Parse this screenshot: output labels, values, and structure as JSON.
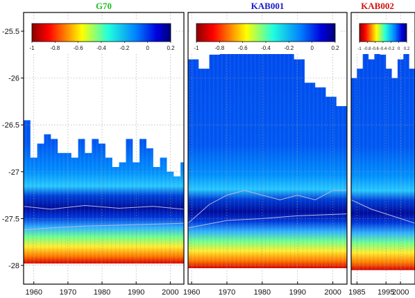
{
  "chart_data": {
    "type": "heatmap",
    "colormap": "jet",
    "colorbar_range": [
      -1,
      0.2
    ],
    "shared_y": {
      "ticks": [
        -25.5,
        -26,
        -26.5,
        -27,
        -27.5,
        -28
      ],
      "tick_labels": [
        "-25.5",
        "-26",
        "-26.5",
        "-27",
        "-27.5",
        "-28"
      ],
      "ylim": [
        -28.2,
        -25.3
      ]
    },
    "panels": [
      {
        "title": "G70",
        "title_color": "#1fc21f",
        "xlim": [
          1957,
          2004
        ],
        "xticks": [
          1960,
          1970,
          1980,
          1990,
          2000
        ],
        "xtick_labels": [
          "1960",
          "1970",
          "1980",
          "1990",
          "2000"
        ],
        "colorbar_ticks": [
          "-1",
          "-0.8",
          "-0.6",
          "-0.4",
          "-0.2",
          "0",
          "0.2"
        ],
        "top_boundary_years": [
          1957,
          1959,
          1961,
          1963,
          1965,
          1967,
          1969,
          1971,
          1973,
          1975,
          1977,
          1979,
          1981,
          1983,
          1985,
          1987,
          1989,
          1991,
          1993,
          1995,
          1997,
          1999,
          2001,
          2003
        ],
        "top_boundary_depth": [
          -26.45,
          -26.85,
          -26.7,
          -26.6,
          -26.65,
          -26.8,
          -26.8,
          -26.85,
          -26.65,
          -26.8,
          -26.65,
          -26.7,
          -26.85,
          -26.95,
          -26.9,
          -26.65,
          -26.9,
          -26.65,
          -26.75,
          -26.95,
          -26.85,
          -27.0,
          -27.05,
          -26.9
        ],
        "bottom_depth": -27.98,
        "contours": [
          {
            "level": "-0.2",
            "years": [
              1957,
              1965,
              1975,
              1985,
              1995,
              2004
            ],
            "depth": [
              -27.37,
              -27.4,
              -27.36,
              -27.39,
              -27.37,
              -27.4
            ]
          },
          {
            "level": "-0.2",
            "years": [
              1957,
              1965,
              1975,
              1985,
              1995,
              2004
            ],
            "depth": [
              -27.62,
              -27.6,
              -27.58,
              -27.57,
              -27.56,
              -27.55
            ]
          }
        ]
      },
      {
        "title": "KAB001",
        "title_color": "#1a1acc",
        "xlim": [
          1959,
          2004
        ],
        "xticks": [
          1960,
          1970,
          1980,
          1990,
          2000
        ],
        "xtick_labels": [
          "1960",
          "1970",
          "1980",
          "1990",
          "2000"
        ],
        "colorbar_ticks": [
          "-1",
          "-0.8",
          "-0.6",
          "-0.4",
          "-0.2",
          "0",
          "0.2"
        ],
        "top_boundary_years": [
          1959,
          1962,
          1965,
          1968,
          1971,
          1974,
          1977,
          1980,
          1983,
          1986,
          1989,
          1992,
          1995,
          1998,
          2001,
          2004
        ],
        "top_boundary_depth": [
          -25.8,
          -25.9,
          -25.75,
          -25.6,
          -25.5,
          -25.4,
          -25.45,
          -25.6,
          -25.7,
          -25.65,
          -25.8,
          -26.05,
          -26.1,
          -26.2,
          -26.3,
          -26.25
        ],
        "bottom_depth": -28.03,
        "contours": [
          {
            "level": "-0.2",
            "years": [
              1959,
              1965,
              1970,
              1975,
              1980,
              1985,
              1990,
              1995,
              2000,
              2004
            ],
            "depth": [
              -27.55,
              -27.35,
              -27.25,
              -27.2,
              -27.25,
              -27.3,
              -27.25,
              -27.3,
              -27.2,
              -27.2
            ]
          },
          {
            "level": "-0.2",
            "years": [
              1959,
              1970,
              1980,
              1990,
              2004
            ],
            "depth": [
              -27.6,
              -27.52,
              -27.5,
              -27.47,
              -27.45
            ]
          }
        ]
      },
      {
        "title": "KAB002",
        "title_color": "#d11414",
        "xlim": [
          1983,
          2005
        ],
        "xticks": [
          1985,
          1995,
          2000
        ],
        "xtick_labels": [
          "1985",
          "1995",
          "2000"
        ],
        "colorbar_ticks": [
          "-1",
          "-0.8",
          "-0.6",
          "-0.4",
          "-0.2",
          "0",
          "0.2"
        ],
        "top_boundary_years": [
          1983,
          1985,
          1987,
          1989,
          1991,
          1993,
          1995,
          1997,
          1999,
          2001,
          2003,
          2005
        ],
        "top_boundary_depth": [
          -26.0,
          -25.9,
          -25.7,
          -25.8,
          -25.6,
          -25.75,
          -25.9,
          -26.0,
          -25.8,
          -25.7,
          -25.9,
          -26.1
        ],
        "bottom_depth": -28.05,
        "contours": [
          {
            "level": "-0.2",
            "years": [
              1983,
              1990,
              1995,
              2000,
              2005
            ],
            "depth": [
              -27.3,
              -27.4,
              -27.45,
              -27.5,
              -27.55
            ]
          }
        ]
      }
    ]
  }
}
